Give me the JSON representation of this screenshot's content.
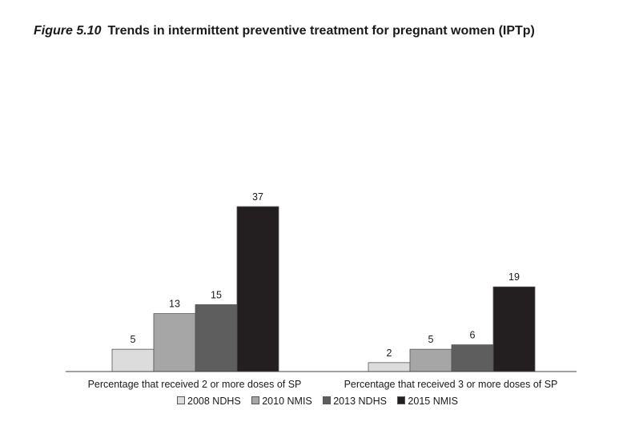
{
  "figure": {
    "label": "Figure 5.10",
    "title": "Trends in intermittent preventive treatment for pregnant women (IPTp)"
  },
  "chart_data": {
    "type": "bar",
    "categories": [
      "Percentage that received 2 or more doses of SP",
      "Percentage that received 3 or more doses of SP"
    ],
    "series": [
      {
        "name": "2008 NDHS",
        "values": [
          5,
          2
        ],
        "color": "#dcdcdc"
      },
      {
        "name": "2010 NMIS",
        "values": [
          13,
          5
        ],
        "color": "#a6a6a6"
      },
      {
        "name": "2013 NDHS",
        "values": [
          15,
          6
        ],
        "color": "#5e5e5e"
      },
      {
        "name": "2015 NMIS",
        "values": [
          37,
          19
        ],
        "color": "#231f20"
      }
    ],
    "data_labels": true,
    "ylim": [
      0,
      37
    ],
    "grid": false,
    "legend_position": "bottom"
  }
}
